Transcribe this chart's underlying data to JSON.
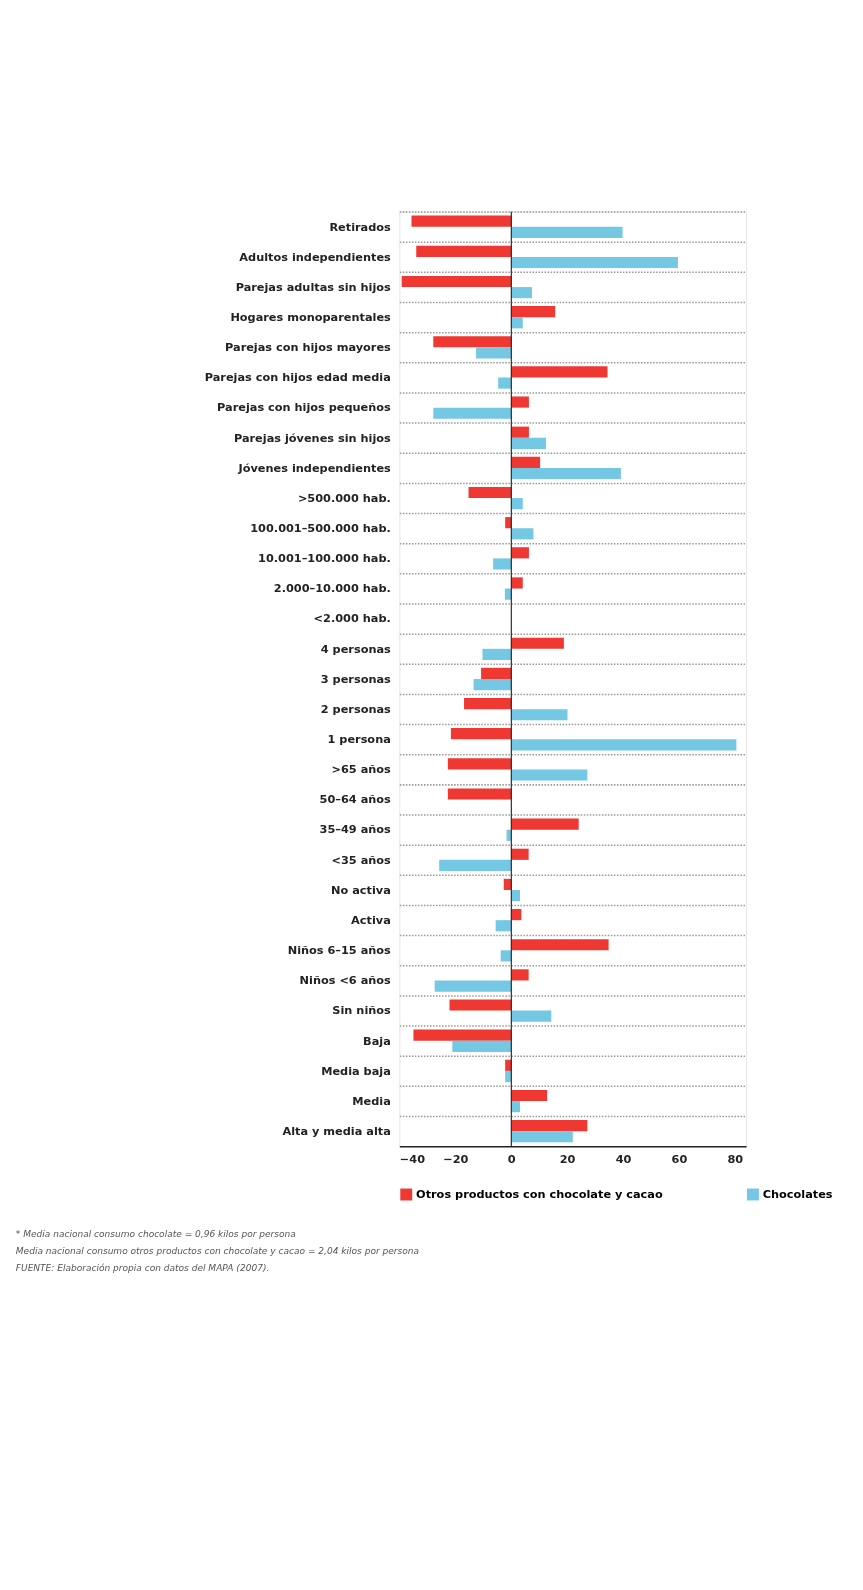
{
  "chart_data": {
    "type": "bar",
    "orientation": "horizontal",
    "categories": [
      "Retirados",
      "Adultos independientes",
      "Parejas adultas sin hijos",
      "Hogares monoparentales",
      "Parejas con hijos mayores",
      "Parejas con hijos edad media",
      "Parejas con hijos pequeños",
      "Parejas jóvenes sin hijos",
      "Jóvenes independientes",
      ">500.000 hab.",
      "100.001–500.000 hab.",
      "10.001–100.000 hab.",
      "2.000–10.000 hab.",
      "<2.000 hab.",
      "4 personas",
      "3 personas",
      "2 personas",
      "1 persona",
      ">65 años",
      "50–64 años",
      "35–49 años",
      "<35 años",
      "No activa",
      "Activa",
      "Niños 6–15 años",
      "Niños <6 años",
      "Sin niños",
      "Baja",
      "Media baja",
      "Media",
      "Alta y media alta"
    ],
    "series": [
      {
        "name": "Otros productos con chocolate y cacao",
        "color": "#ee3831",
        "values": [
          -35.7,
          -34.0,
          -39.2,
          15.7,
          -27.9,
          34.4,
          6.3,
          6.3,
          10.3,
          -15.3,
          -2.2,
          6.3,
          4.1,
          0,
          18.8,
          -10.8,
          -16.9,
          -21.6,
          -22.7,
          -22.7,
          24.1,
          6.2,
          -2.7,
          3.6,
          34.8,
          6.2,
          -22.1,
          -35.0,
          -2.2,
          12.8,
          27.2
        ]
      },
      {
        "name": "Chocolates",
        "color": "#74c8e3",
        "values": [
          39.8,
          59.6,
          7.4,
          4.1,
          -12.6,
          -4.7,
          -27.9,
          12.4,
          39.2,
          4.1,
          7.9,
          -6.5,
          -2.3,
          0,
          -10.3,
          -13.5,
          20.1,
          80.5,
          27.2,
          0,
          -1.7,
          -25.8,
          3.1,
          -5.6,
          -3.8,
          -27.4,
          14.3,
          -21.1,
          -2.2,
          3.1,
          22.0
        ]
      }
    ],
    "xlim": [
      -40,
      84
    ],
    "xticks": [
      {
        "value": -40,
        "label": "−40"
      },
      {
        "value": -20,
        "label": "−20"
      },
      0,
      20,
      40,
      60,
      80
    ],
    "grid": "y",
    "legend": "bottom",
    "annotations": [
      "* Media nacional consumo chocolate = 0,96 kilos por persona",
      "Media nacional consumo otros productos con chocolate y cacao = 2,04 kilos por persona",
      "FUENTE: Elaboración propia con datos del MAPA (2007)."
    ]
  }
}
